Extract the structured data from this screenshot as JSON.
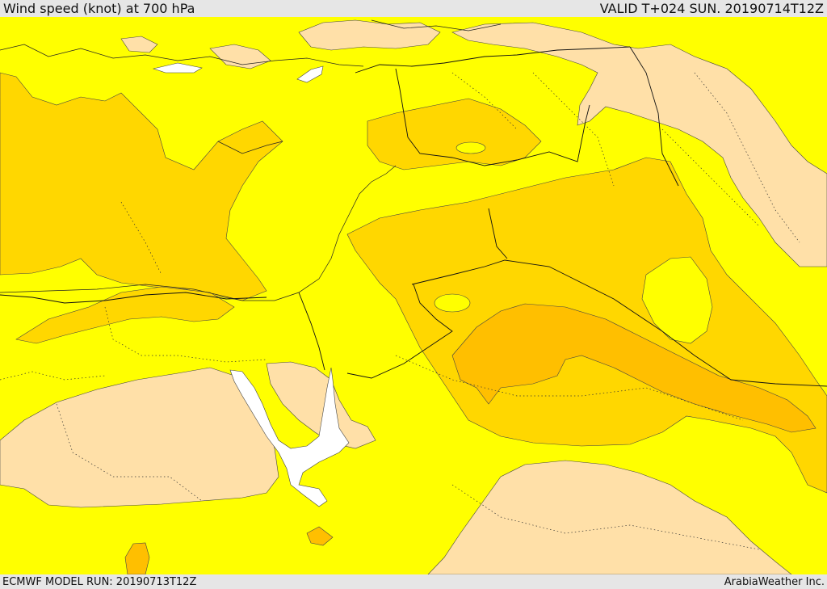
{
  "header": {
    "title": "Wind speed (knot) at 700 hPa",
    "valid": "VALID T+024 SUN. 20190714T12Z"
  },
  "footer": {
    "model_run": "ECMWF MODEL RUN: 20190713T12Z",
    "credit": "ArabiaWeather Inc."
  },
  "colors": {
    "background_frame": "#e6e6e6",
    "light_peach_band": "#ffe0a8",
    "yellow_band": "#ffff00",
    "gold_band": "#ffd700",
    "orange_band": "#ffbf00",
    "water_white": "#ffffff"
  }
}
